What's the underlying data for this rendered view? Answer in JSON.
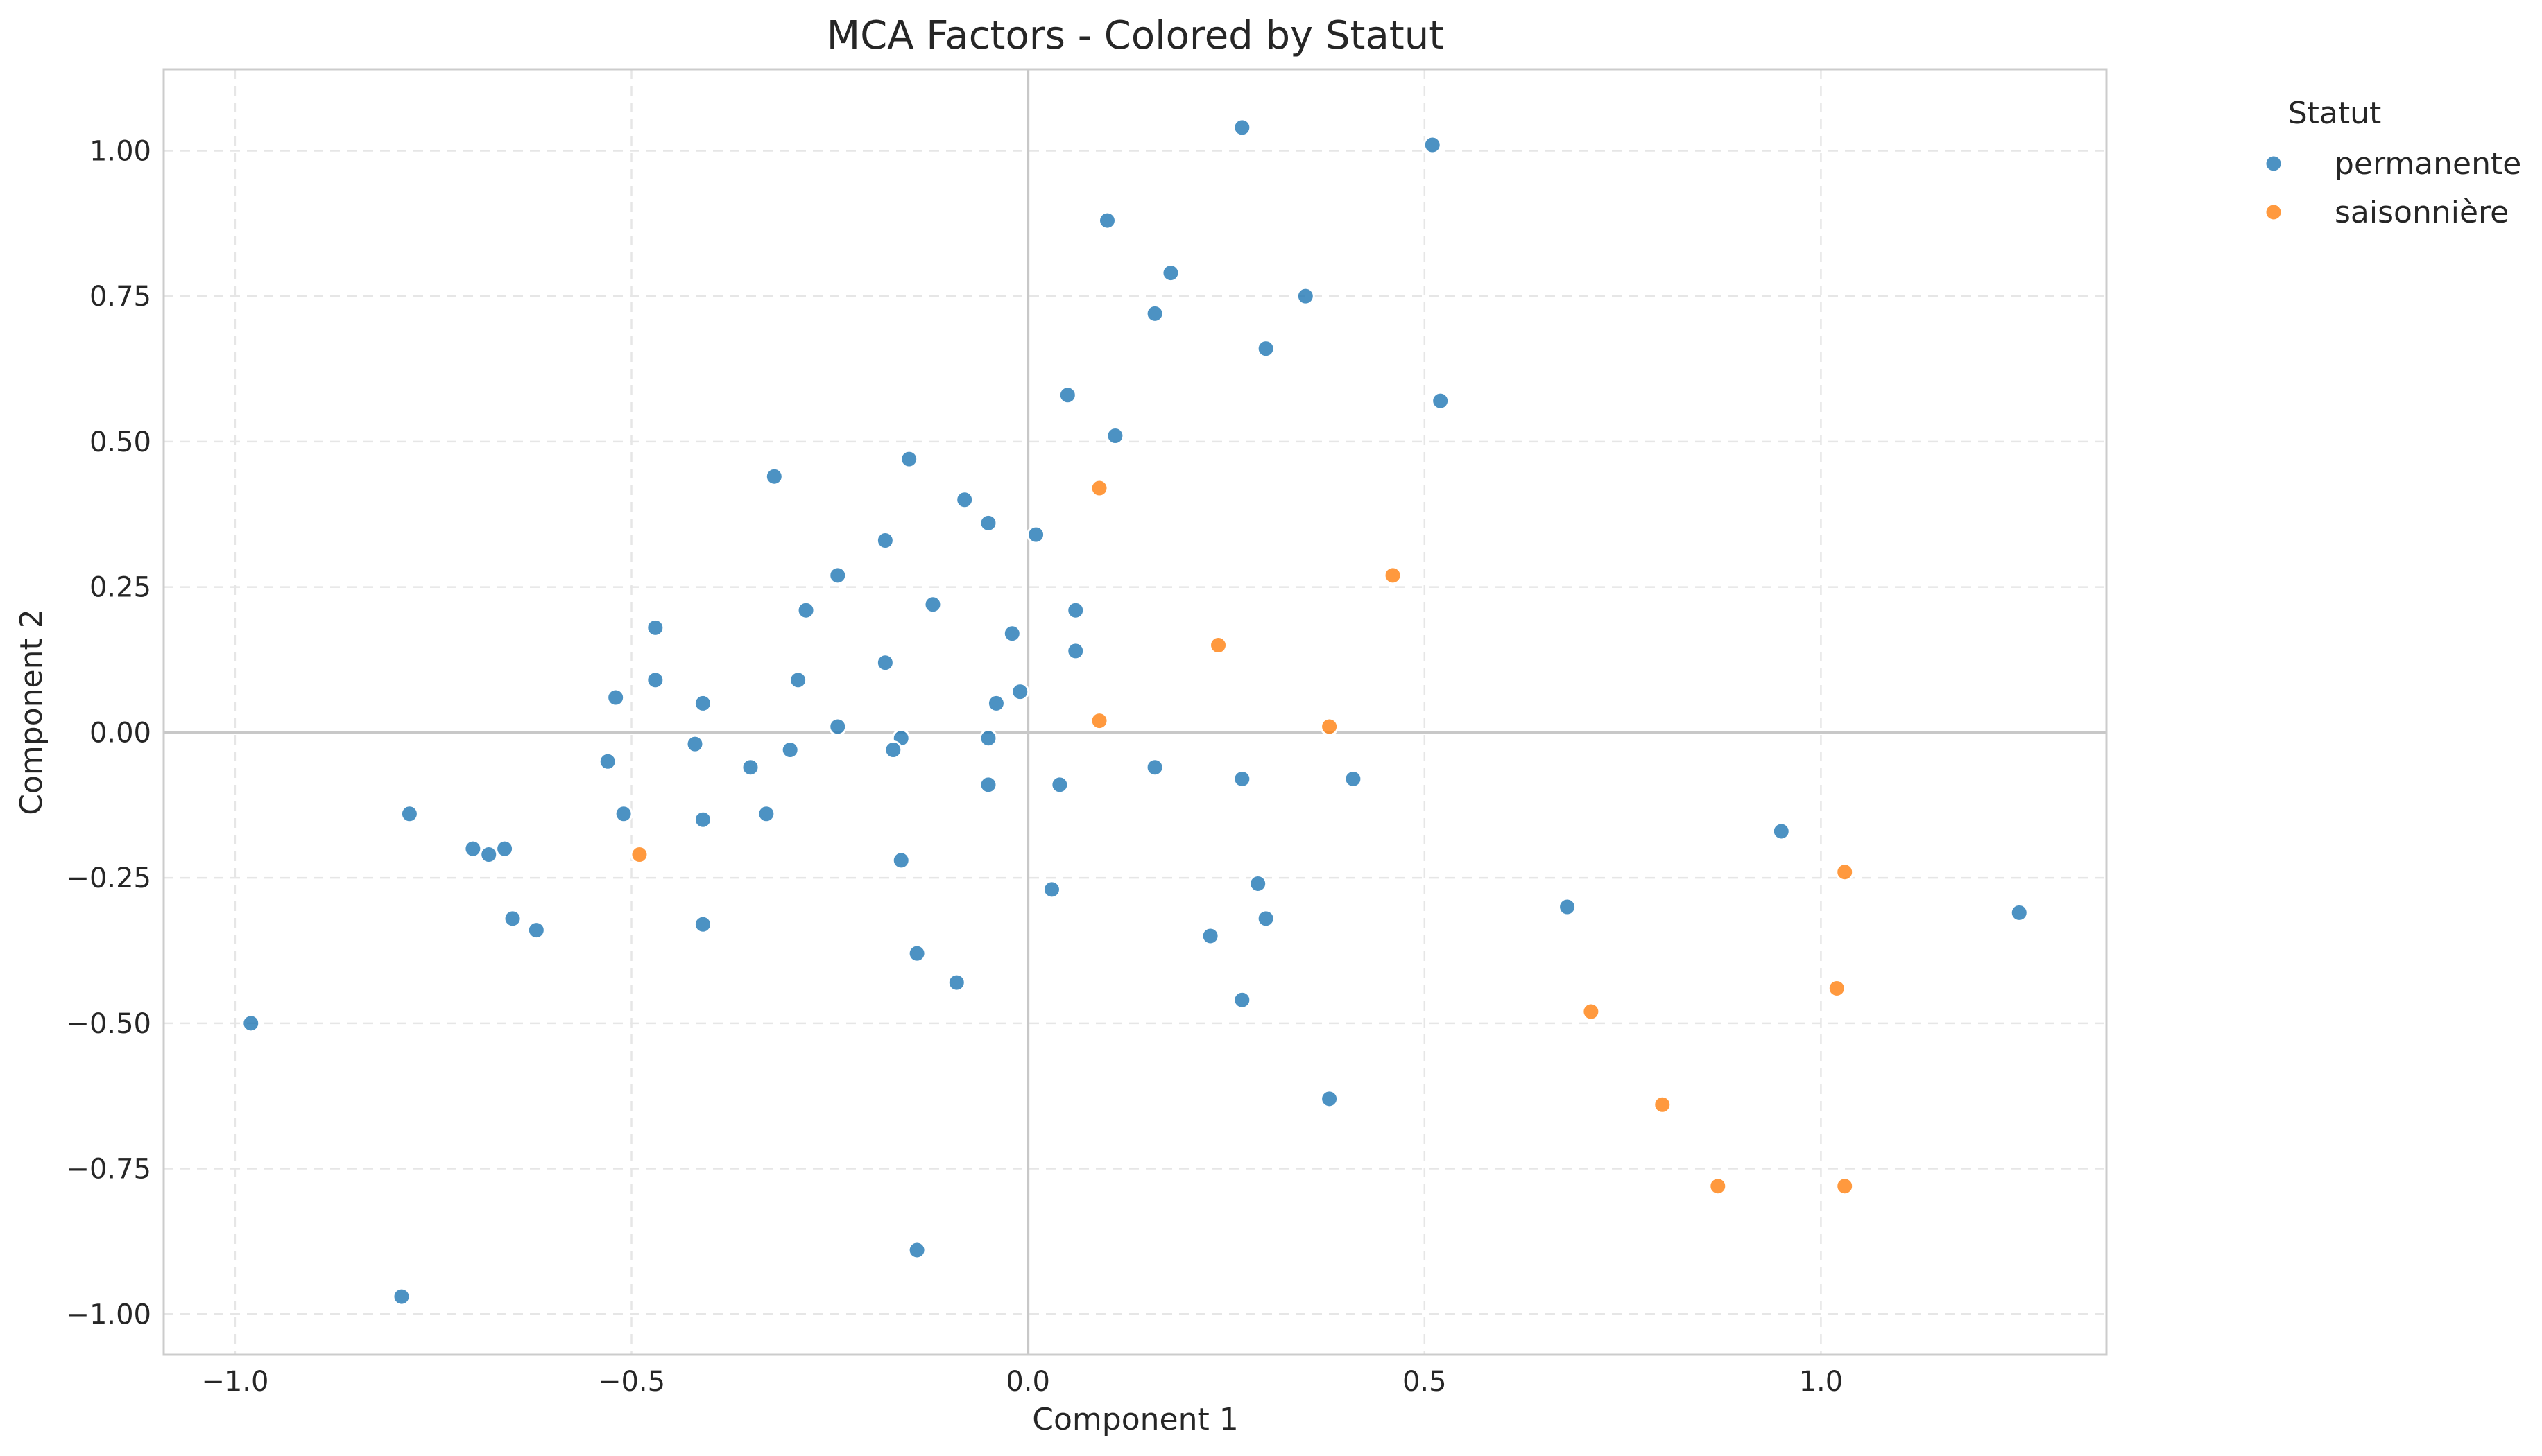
{
  "chart_data": {
    "type": "scatter",
    "title": "MCA Factors - Colored by Statut",
    "xlabel": "Component 1",
    "ylabel": "Component 2",
    "xlim": [
      -1.09,
      1.36
    ],
    "ylim": [
      -1.07,
      1.14
    ],
    "xticks": [
      -1.0,
      -0.5,
      0.0,
      0.5,
      1.0
    ],
    "xtick_labels": [
      "−1.0",
      "−0.5",
      "0.0",
      "0.5",
      "1.0"
    ],
    "yticks": [
      -1.0,
      -0.75,
      -0.5,
      -0.25,
      0.0,
      0.25,
      0.5,
      0.75,
      1.0
    ],
    "ytick_labels": [
      "−1.00",
      "−0.75",
      "−0.50",
      "−0.25",
      "0.00",
      "0.25",
      "0.50",
      "0.75",
      "1.00"
    ],
    "grid": true,
    "reference_lines": {
      "x": 0,
      "y": 0
    },
    "legend": {
      "title": "Statut",
      "placement": "outside-top-right"
    },
    "series": [
      {
        "name": "permanente",
        "color": "#1f77b4",
        "points": [
          [
            0.27,
            1.04
          ],
          [
            0.51,
            1.01
          ],
          [
            0.1,
            0.88
          ],
          [
            0.18,
            0.79
          ],
          [
            0.35,
            0.75
          ],
          [
            0.16,
            0.72
          ],
          [
            0.3,
            0.66
          ],
          [
            0.05,
            0.58
          ],
          [
            0.52,
            0.57
          ],
          [
            0.11,
            0.51
          ],
          [
            -0.15,
            0.47
          ],
          [
            -0.32,
            0.44
          ],
          [
            -0.08,
            0.4
          ],
          [
            -0.05,
            0.36
          ],
          [
            0.01,
            0.34
          ],
          [
            -0.18,
            0.33
          ],
          [
            -0.24,
            0.27
          ],
          [
            -0.12,
            0.22
          ],
          [
            0.06,
            0.21
          ],
          [
            -0.28,
            0.21
          ],
          [
            -0.47,
            0.18
          ],
          [
            -0.02,
            0.17
          ],
          [
            0.06,
            0.14
          ],
          [
            -0.18,
            0.12
          ],
          [
            -0.47,
            0.09
          ],
          [
            -0.29,
            0.09
          ],
          [
            -0.01,
            0.07
          ],
          [
            -0.52,
            0.06
          ],
          [
            -0.04,
            0.05
          ],
          [
            -0.41,
            0.05
          ],
          [
            -0.24,
            0.01
          ],
          [
            -0.16,
            -0.01
          ],
          [
            -0.05,
            -0.01
          ],
          [
            -0.42,
            -0.02
          ],
          [
            -0.3,
            -0.03
          ],
          [
            -0.17,
            -0.03
          ],
          [
            -0.53,
            -0.05
          ],
          [
            -0.35,
            -0.06
          ],
          [
            0.16,
            -0.06
          ],
          [
            0.27,
            -0.08
          ],
          [
            0.04,
            -0.09
          ],
          [
            -0.05,
            -0.09
          ],
          [
            0.41,
            -0.08
          ],
          [
            -0.51,
            -0.14
          ],
          [
            -0.33,
            -0.14
          ],
          [
            -0.41,
            -0.15
          ],
          [
            -0.78,
            -0.14
          ],
          [
            -0.16,
            -0.22
          ],
          [
            -0.7,
            -0.2
          ],
          [
            -0.68,
            -0.21
          ],
          [
            -0.66,
            -0.2
          ],
          [
            0.95,
            -0.17
          ],
          [
            0.29,
            -0.26
          ],
          [
            0.03,
            -0.27
          ],
          [
            0.68,
            -0.3
          ],
          [
            1.25,
            -0.31
          ],
          [
            -0.65,
            -0.32
          ],
          [
            -0.62,
            -0.34
          ],
          [
            0.3,
            -0.32
          ],
          [
            -0.41,
            -0.33
          ],
          [
            0.23,
            -0.35
          ],
          [
            -0.14,
            -0.38
          ],
          [
            -0.09,
            -0.43
          ],
          [
            0.27,
            -0.46
          ],
          [
            -0.98,
            -0.5
          ],
          [
            0.38,
            -0.63
          ],
          [
            -0.14,
            -0.89
          ],
          [
            -0.79,
            -0.97
          ]
        ]
      },
      {
        "name": "saisonnière",
        "color": "#ff7f0e",
        "points": [
          [
            0.09,
            0.42
          ],
          [
            0.46,
            0.27
          ],
          [
            0.24,
            0.15
          ],
          [
            0.09,
            0.02
          ],
          [
            0.38,
            0.01
          ],
          [
            -0.49,
            -0.21
          ],
          [
            1.03,
            -0.24
          ],
          [
            1.02,
            -0.44
          ],
          [
            0.71,
            -0.48
          ],
          [
            0.8,
            -0.64
          ],
          [
            0.87,
            -0.78
          ],
          [
            1.03,
            -0.78
          ]
        ]
      }
    ]
  }
}
